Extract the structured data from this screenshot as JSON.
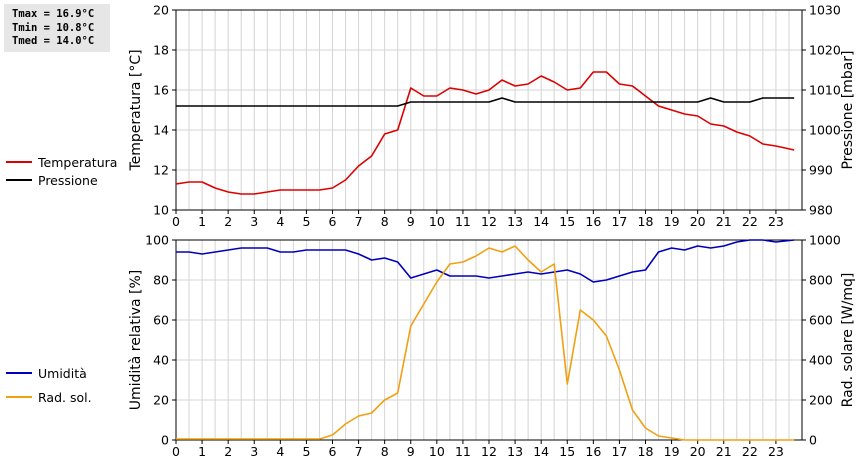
{
  "stats": {
    "tmax": "Tmax = 16.9°C",
    "tmin": "Tmin = 10.8°C",
    "tmed": "Tmed = 14.0°C"
  },
  "legend_top": [
    {
      "label": "Temperatura",
      "color": "#dd0000"
    },
    {
      "label": "Pressione",
      "color": "#000000"
    }
  ],
  "legend_bottom": [
    {
      "label": "Umidità",
      "color": "#0000bb"
    },
    {
      "label": "Rad. sol.",
      "color": "#f0a010"
    }
  ],
  "chart_data": [
    {
      "type": "line",
      "xlim": [
        0,
        24
      ],
      "x_ticks": [
        0,
        1,
        2,
        3,
        4,
        5,
        6,
        7,
        8,
        9,
        10,
        11,
        12,
        13,
        14,
        15,
        16,
        17,
        18,
        19,
        20,
        21,
        22,
        23
      ],
      "ylabel": "Temperatura [°C]",
      "ylim": [
        10,
        20
      ],
      "y_ticks": [
        10,
        12,
        14,
        16,
        18,
        20
      ],
      "y2label": "Pressione [mbar]",
      "y2lim": [
        980,
        1030
      ],
      "y2_ticks": [
        980,
        990,
        1000,
        1010,
        1020,
        1030
      ],
      "grid": true,
      "series": [
        {
          "name": "Temperatura",
          "axis": "left",
          "color": "#dd0000",
          "x": [
            0,
            0.5,
            1,
            1.5,
            2,
            2.5,
            3,
            3.5,
            4,
            4.5,
            5,
            5.5,
            6,
            6.5,
            7,
            7.5,
            8,
            8.5,
            9,
            9.5,
            10,
            10.5,
            11,
            11.5,
            12,
            12.5,
            13,
            13.5,
            14,
            14.5,
            15,
            15.5,
            16,
            16.5,
            17,
            17.5,
            18,
            18.5,
            19,
            19.5,
            20,
            20.5,
            21,
            21.5,
            22,
            22.5,
            23,
            23.7
          ],
          "y": [
            11.3,
            11.4,
            11.4,
            11.1,
            10.9,
            10.8,
            10.8,
            10.9,
            11.0,
            11.0,
            11.0,
            11.0,
            11.1,
            11.5,
            12.2,
            12.7,
            13.8,
            14.0,
            16.1,
            15.7,
            15.7,
            16.1,
            16.0,
            15.8,
            16.0,
            16.5,
            16.2,
            16.3,
            16.7,
            16.4,
            16.0,
            16.1,
            16.9,
            16.9,
            16.3,
            16.2,
            15.7,
            15.2,
            15.0,
            14.8,
            14.7,
            14.3,
            14.2,
            13.9,
            13.7,
            13.3,
            13.2,
            13.0
          ]
        },
        {
          "name": "Pressione",
          "axis": "right",
          "color": "#000000",
          "x": [
            0,
            8.5,
            9,
            12,
            12.5,
            13,
            20,
            20.5,
            21,
            22,
            22.5,
            23.7
          ],
          "y": [
            1006,
            1006,
            1007,
            1007,
            1008,
            1007,
            1007,
            1008,
            1007,
            1007,
            1008,
            1008
          ]
        }
      ]
    },
    {
      "type": "line",
      "xlim": [
        0,
        24
      ],
      "x_ticks": [
        0,
        1,
        2,
        3,
        4,
        5,
        6,
        7,
        8,
        9,
        10,
        11,
        12,
        13,
        14,
        15,
        16,
        17,
        18,
        19,
        20,
        21,
        22,
        23
      ],
      "ylabel": "Umidità relativa [%]",
      "ylim": [
        0,
        100
      ],
      "y_ticks": [
        0,
        20,
        40,
        60,
        80,
        100
      ],
      "y2label": "Rad. solare [W/mq]",
      "y2lim": [
        0,
        1000
      ],
      "y2_ticks": [
        0,
        200,
        400,
        600,
        800,
        1000
      ],
      "grid": true,
      "series": [
        {
          "name": "Umidità",
          "axis": "left",
          "color": "#0000bb",
          "x": [
            0,
            0.5,
            1,
            1.5,
            2,
            2.5,
            3,
            3.5,
            4,
            4.5,
            5,
            5.5,
            6,
            6.5,
            7,
            7.5,
            8,
            8.5,
            9,
            9.5,
            10,
            10.5,
            11,
            11.5,
            12,
            12.5,
            13,
            13.5,
            14,
            14.5,
            15,
            15.5,
            16,
            16.5,
            17,
            17.5,
            18,
            18.5,
            19,
            19.5,
            20,
            20.5,
            21,
            21.5,
            22,
            22.5,
            23,
            23.7
          ],
          "y": [
            94,
            94,
            93,
            94,
            95,
            96,
            96,
            96,
            94,
            94,
            95,
            95,
            95,
            95,
            93,
            90,
            91,
            89,
            81,
            83,
            85,
            82,
            82,
            82,
            81,
            82,
            83,
            84,
            83,
            84,
            85,
            83,
            79,
            80,
            82,
            84,
            85,
            94,
            96,
            95,
            97,
            96,
            97,
            99,
            100,
            100,
            99,
            100
          ]
        },
        {
          "name": "Rad. sol.",
          "axis": "right",
          "color": "#f0a010",
          "x": [
            0,
            5.5,
            6,
            6.5,
            7,
            7.5,
            8,
            8.5,
            9,
            9.5,
            10,
            10.5,
            11,
            11.5,
            12,
            12.5,
            13,
            13.5,
            14,
            14.5,
            15,
            15.5,
            16,
            16.5,
            17,
            17.5,
            18,
            18.5,
            19,
            19.5,
            20,
            23.7
          ],
          "y": [
            5,
            5,
            25,
            80,
            120,
            135,
            200,
            235,
            570,
            680,
            790,
            880,
            890,
            920,
            960,
            940,
            970,
            900,
            840,
            880,
            280,
            650,
            600,
            520,
            350,
            150,
            60,
            20,
            10,
            0,
            0,
            0
          ]
        }
      ]
    }
  ]
}
